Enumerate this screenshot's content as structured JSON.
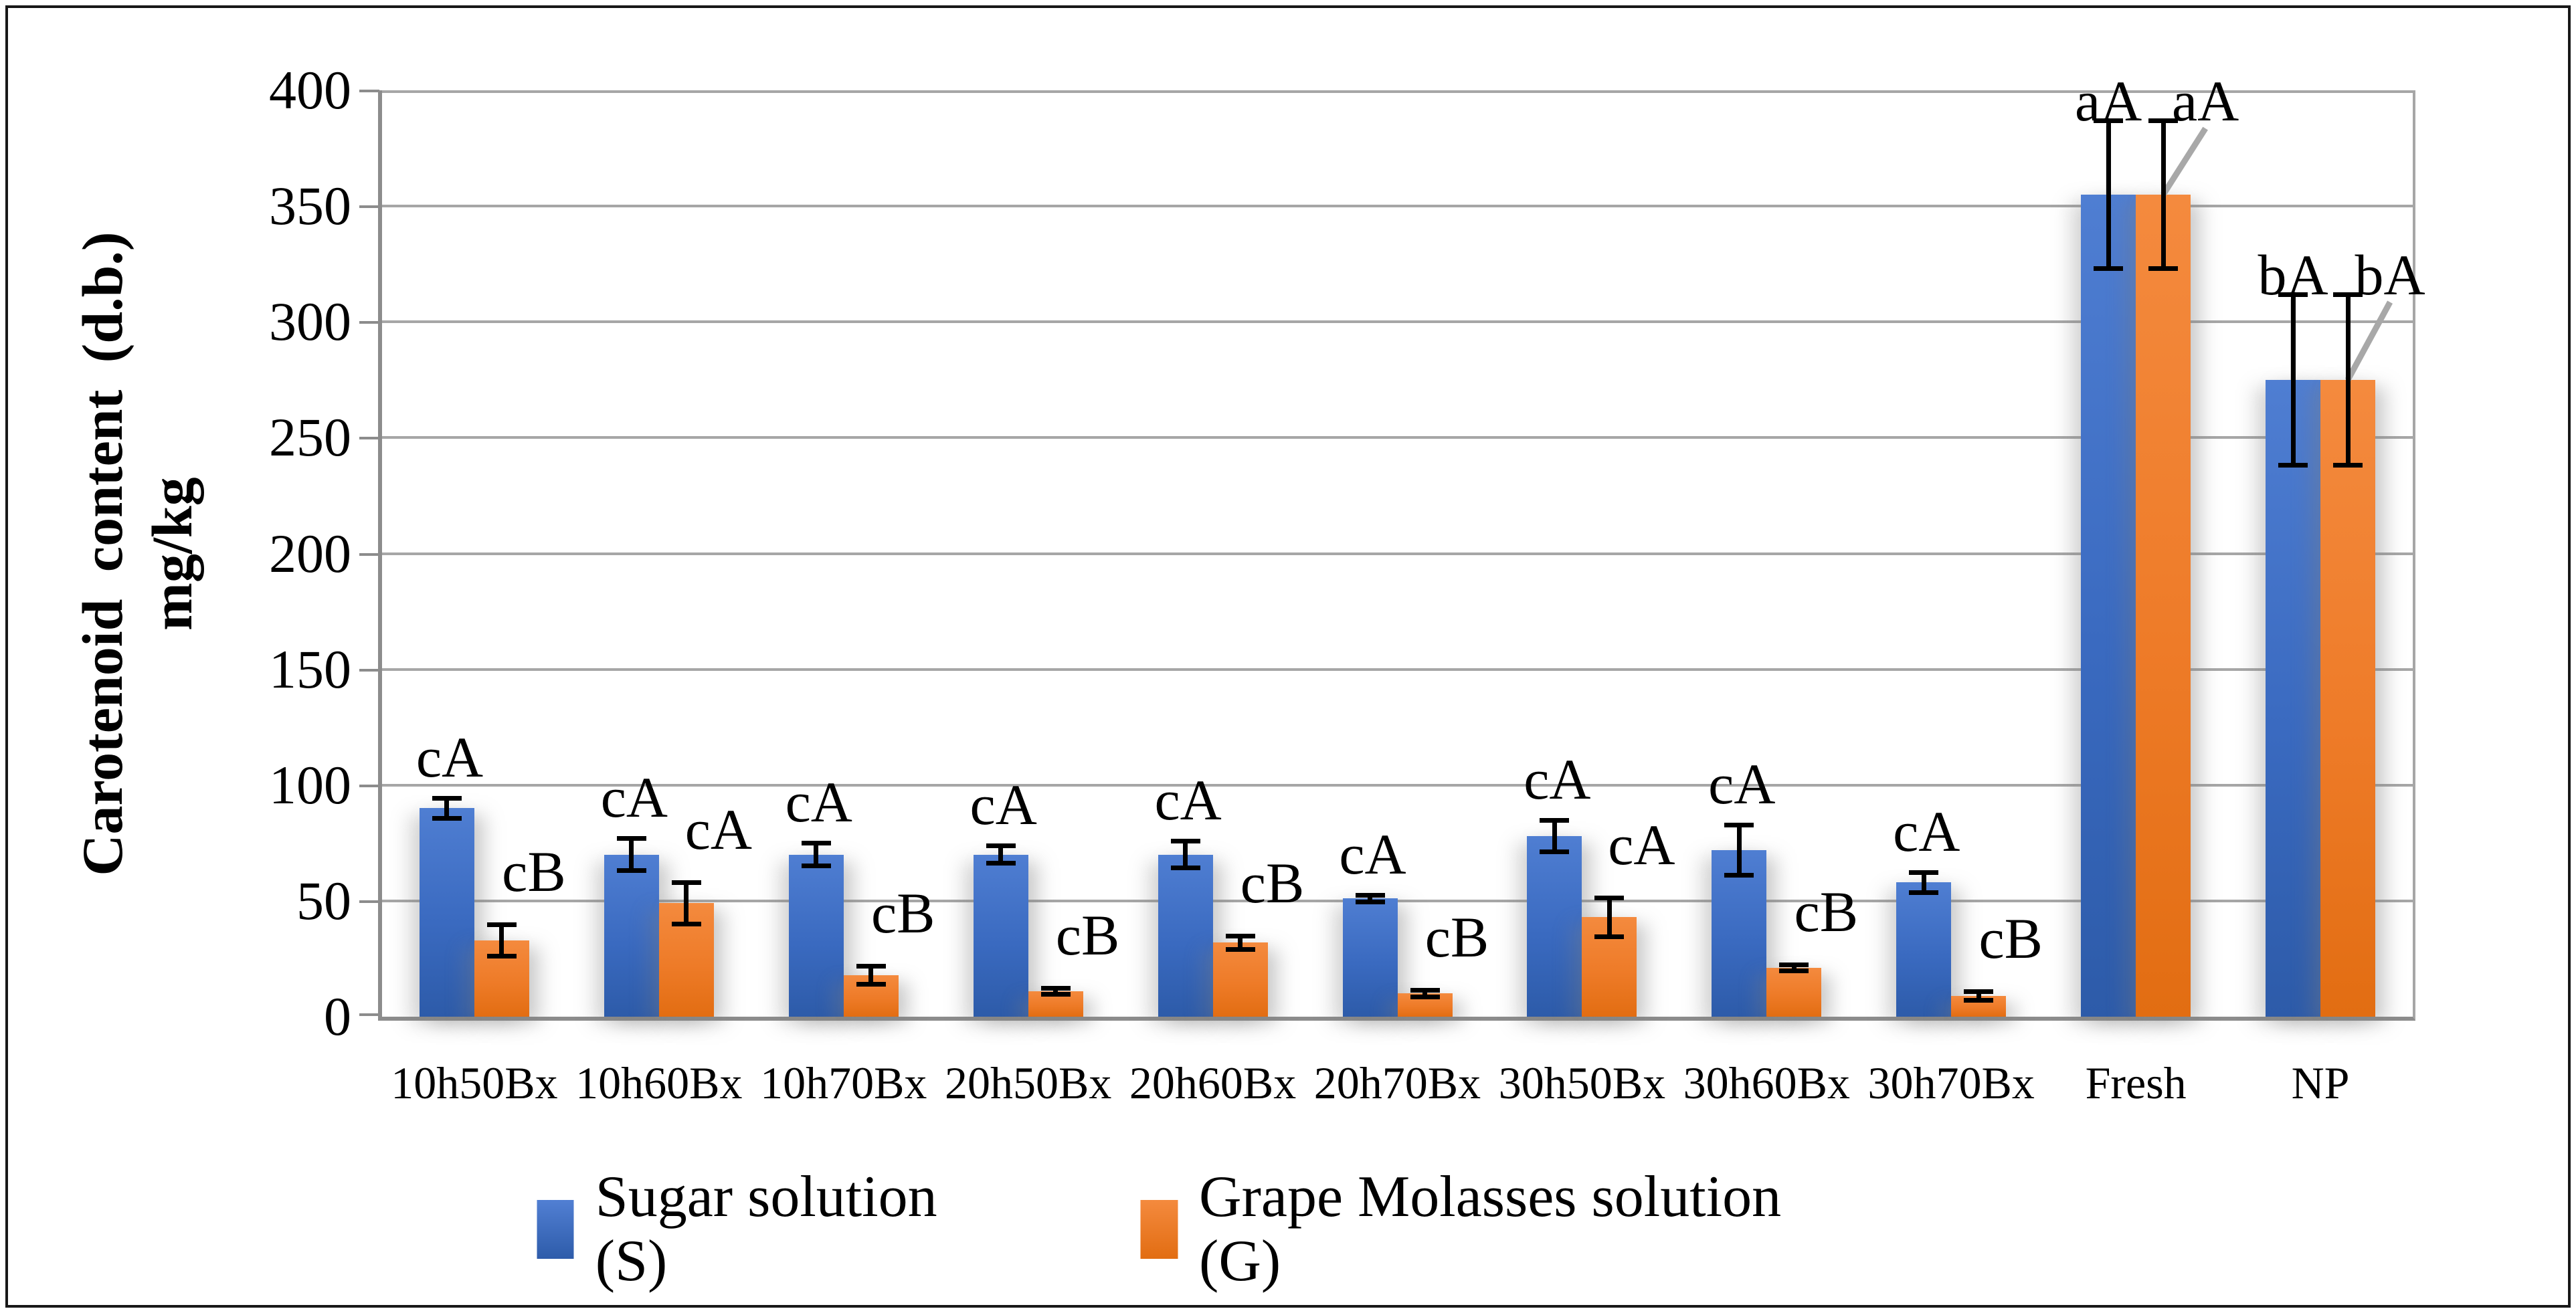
{
  "figure": {
    "background": "#ffffff",
    "border_color": "#181818"
  },
  "chart_data": {
    "type": "bar",
    "title": "",
    "ylabel_line1": "Carotenoid content (d.b.)",
    "ylabel_line2": "mg/kg",
    "xlabel": "",
    "ylim": [
      0,
      400
    ],
    "ytick_step": 50,
    "yticks": [
      0,
      50,
      100,
      150,
      200,
      250,
      300,
      350,
      400
    ],
    "grid": true,
    "gridline_color": "#a6a6a6",
    "axis_color": "#8c8c8c",
    "error_bar_color": "#000000",
    "leader_line_color": "#a8a8a8",
    "legend_position": "bottom",
    "categories": [
      "10h50Bx",
      "10h60Bx",
      "10h70Bx",
      "20h50Bx",
      "20h60Bx",
      "20h70Bx",
      "30h50Bx",
      "30h60Bx",
      "30h70Bx",
      "Fresh",
      "NP"
    ],
    "series": [
      {
        "name": "Sugar solution (S)",
        "color": "#4472C4",
        "values": [
          90,
          70,
          70,
          70,
          70,
          51,
          78,
          72,
          58,
          355,
          275
        ],
        "errors": [
          4.5,
          7,
          5,
          4,
          6,
          1.5,
          7,
          11,
          4.5,
          32,
          37
        ],
        "sig_labels": [
          "cA",
          "cA",
          "cA",
          "cA",
          "cA",
          "cA",
          "cA",
          "cA",
          "cA",
          "aA",
          "bA"
        ]
      },
      {
        "name": "Grape Molasses solution (G)",
        "color": "#ED7D31",
        "values": [
          33,
          49,
          18,
          11,
          32,
          10,
          43,
          21,
          9,
          355,
          275
        ],
        "errors": [
          7,
          9,
          4,
          1.5,
          3,
          1.5,
          8.5,
          1.5,
          2,
          32,
          37
        ],
        "sig_labels": [
          "cB",
          "cA",
          "cB",
          "cB",
          "cB",
          "cB",
          "cA",
          "cB",
          "cB",
          "aA",
          "bA"
        ]
      }
    ]
  },
  "legend": {
    "items": [
      {
        "label": "Sugar solution (S)",
        "color": "#4472C4"
      },
      {
        "label": "Grape Molasses solution (G)",
        "color": "#ED7D31"
      }
    ]
  }
}
